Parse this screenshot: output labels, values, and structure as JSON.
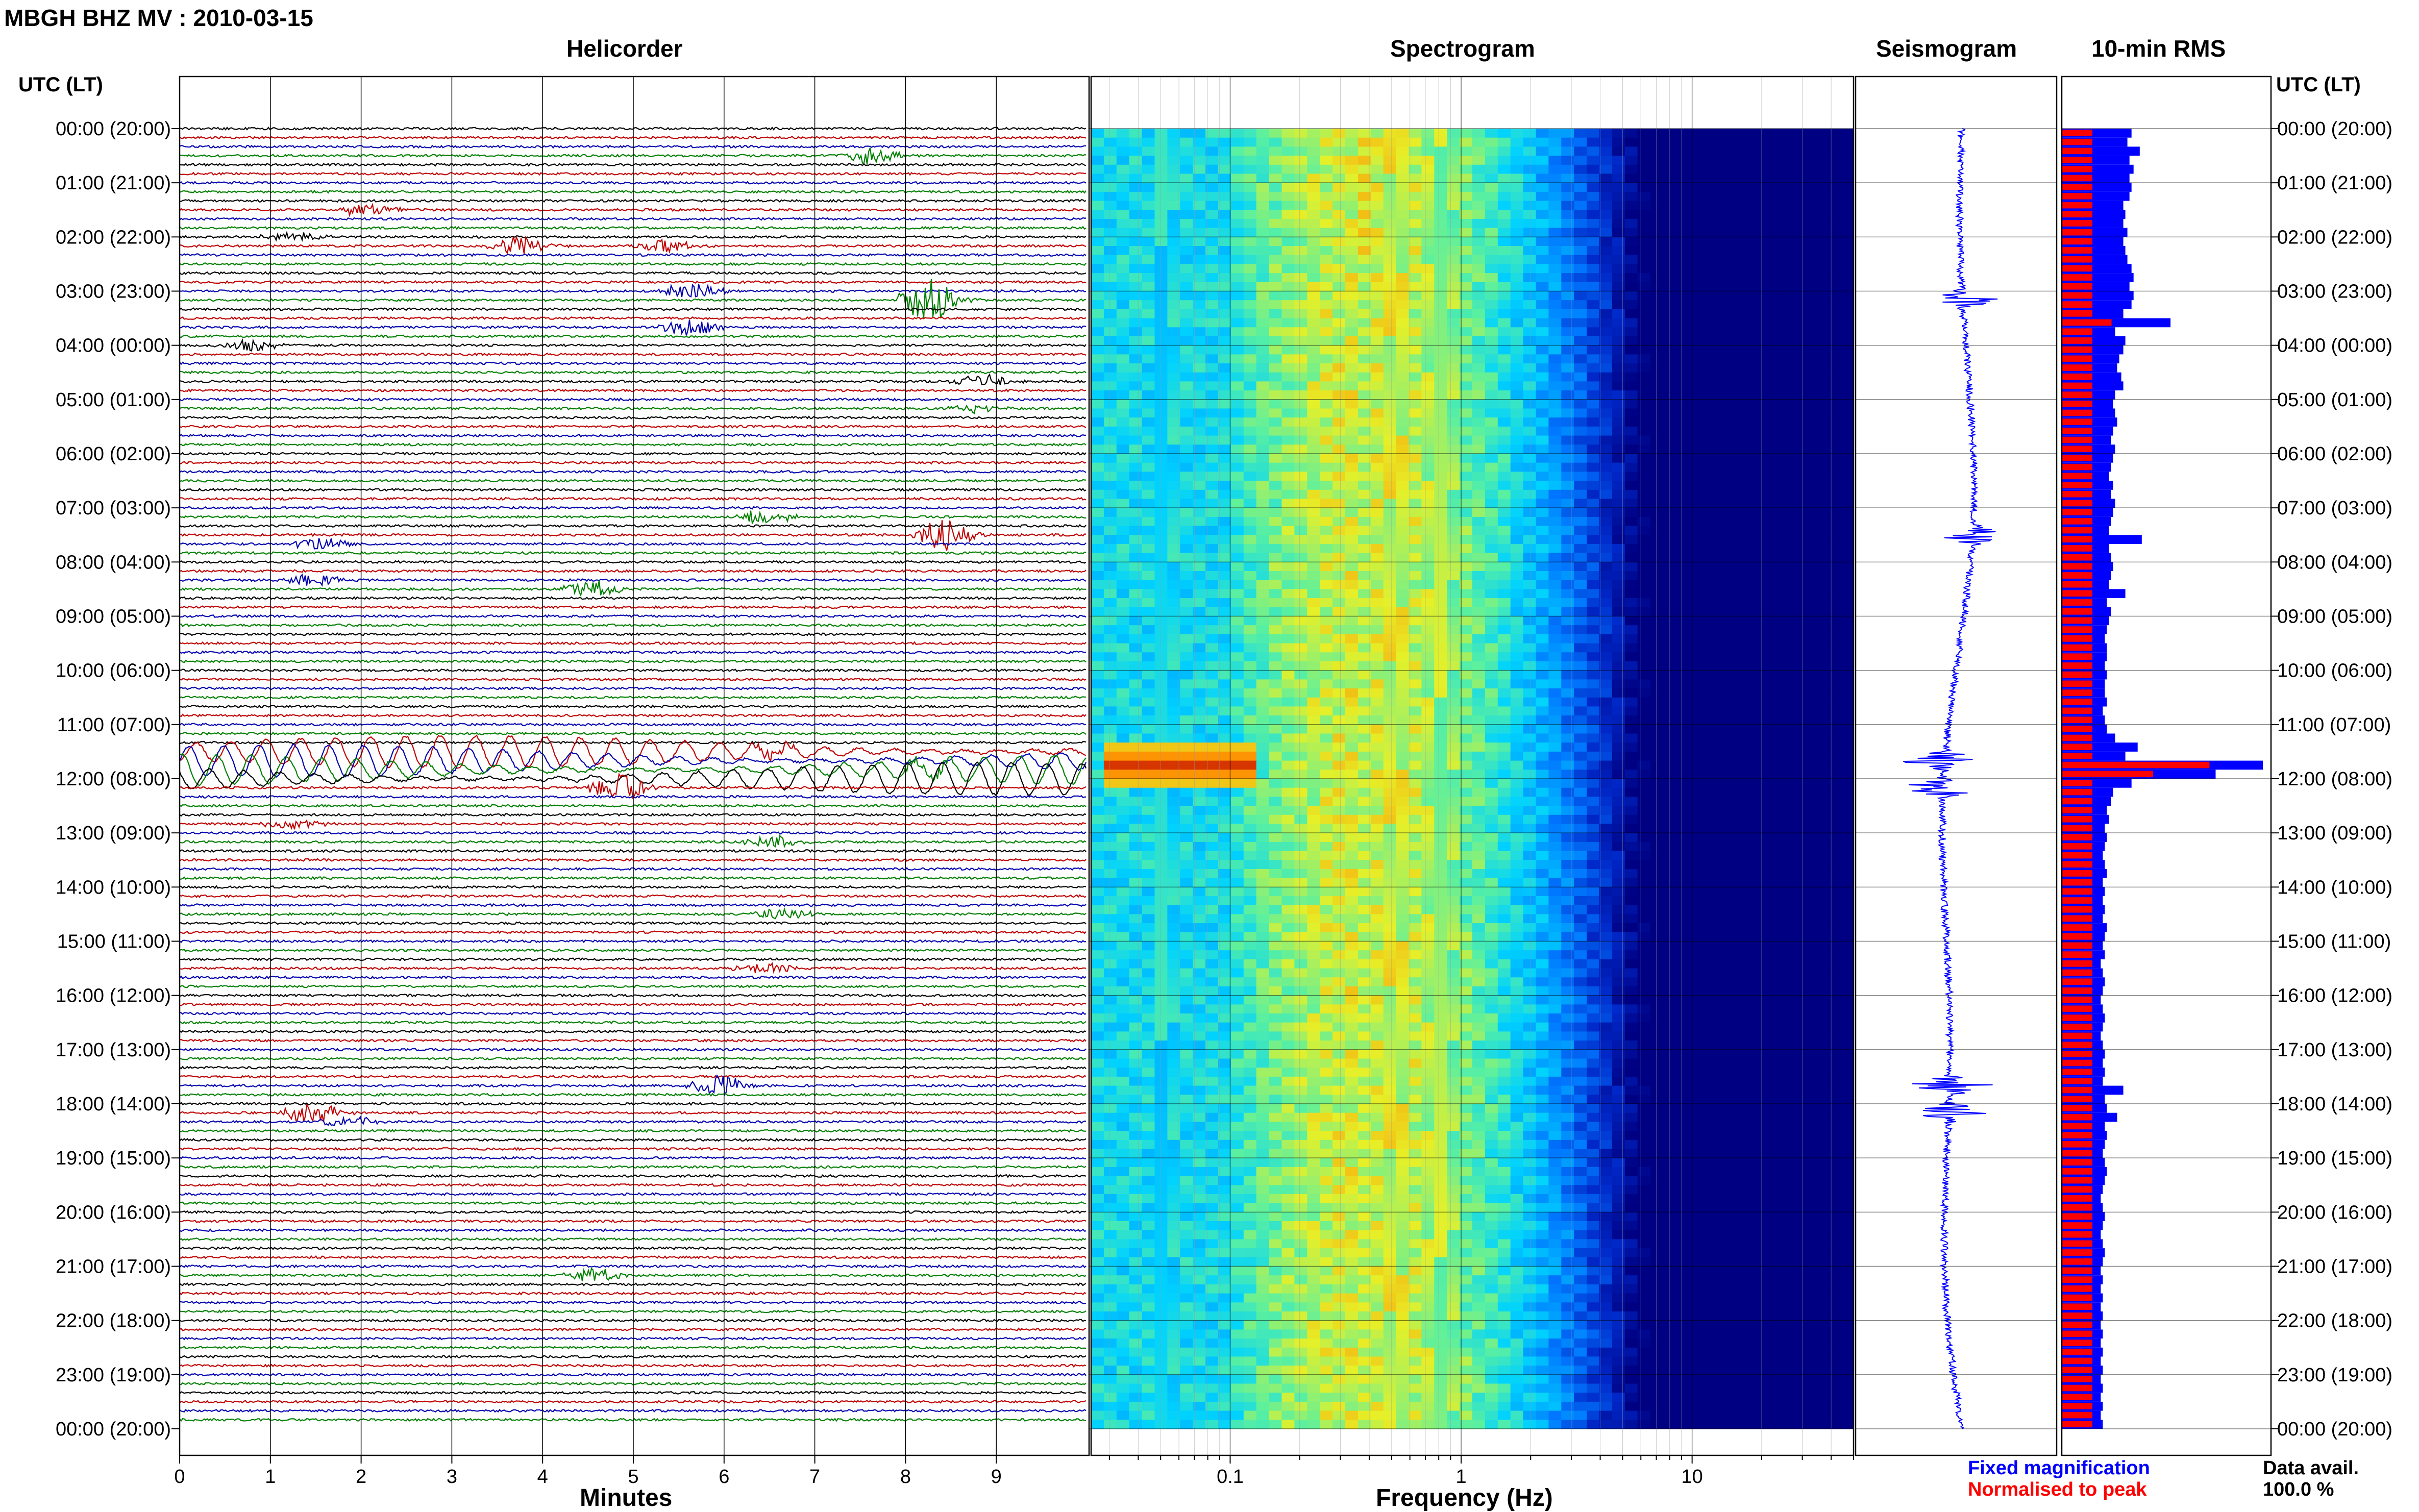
{
  "header": {
    "station_title": "MBGH BHZ MV : 2010-03-15",
    "panel_titles": {
      "helicorder": "Helicorder",
      "spectrogram": "Spectrogram",
      "seismogram": "Seismogram",
      "rms": "10-min RMS"
    },
    "time_axis_label": "UTC (LT)"
  },
  "colors": {
    "trace_cycle": [
      "#000000",
      "#c00000",
      "#0000b0",
      "#008000"
    ],
    "rms_fixed": "#0000ff",
    "rms_normalised": "#ff0000",
    "grid": "#000000"
  },
  "chart_data": [
    {
      "type": "line",
      "panel": "Helicorder",
      "xlabel": "Minutes",
      "x_ticks": [
        "0",
        "1",
        "2",
        "3",
        "4",
        "5",
        "6",
        "7",
        "8",
        "9"
      ],
      "xlim": [
        0,
        10
      ],
      "rows_per_hour": 6,
      "y_tick_labels": [
        "00:00 (20:00)",
        "01:00 (21:00)",
        "02:00 (22:00)",
        "03:00 (23:00)",
        "04:00 (00:00)",
        "05:00 (01:00)",
        "06:00 (02:00)",
        "07:00 (03:00)",
        "08:00 (04:00)",
        "09:00 (05:00)",
        "10:00 (06:00)",
        "11:00 (07:00)",
        "12:00 (08:00)",
        "13:00 (09:00)",
        "14:00 (10:00)",
        "15:00 (11:00)",
        "16:00 (12:00)",
        "17:00 (13:00)",
        "18:00 (14:00)",
        "19:00 (15:00)",
        "20:00 (16:00)",
        "21:00 (17:00)",
        "22:00 (18:00)",
        "23:00 (19:00)",
        "00:00 (20:00)"
      ],
      "events": [
        {
          "row": 3,
          "minute": 7.4,
          "amplitude": 1.5
        },
        {
          "row": 9,
          "minute": 1.8,
          "amplitude": 1.2
        },
        {
          "row": 12,
          "minute": 1.0,
          "amplitude": 1.0
        },
        {
          "row": 13,
          "minute": 3.5,
          "amplitude": 1.8
        },
        {
          "row": 13,
          "minute": 5.1,
          "amplitude": 1.1
        },
        {
          "row": 18,
          "minute": 5.4,
          "amplitude": 1.7
        },
        {
          "row": 19,
          "minute": 8.0,
          "amplitude": 4.0
        },
        {
          "row": 22,
          "minute": 5.4,
          "amplitude": 1.6
        },
        {
          "row": 24,
          "minute": 0.5,
          "amplitude": 1.1
        },
        {
          "row": 28,
          "minute": 8.6,
          "amplitude": 1.2
        },
        {
          "row": 31,
          "minute": 8.5,
          "amplitude": 0.8
        },
        {
          "row": 43,
          "minute": 6.2,
          "amplitude": 1.3
        },
        {
          "row": 45,
          "minute": 8.2,
          "amplitude": 3.0
        },
        {
          "row": 46,
          "minute": 1.3,
          "amplitude": 1.1
        },
        {
          "row": 50,
          "minute": 1.2,
          "amplitude": 1.0
        },
        {
          "row": 51,
          "minute": 4.3,
          "amplitude": 1.6
        },
        {
          "row": 69,
          "minute": 6.3,
          "amplitude": 1.3
        },
        {
          "row": 71,
          "minute": 8.0,
          "amplitude": 1.2
        },
        {
          "row": 73,
          "minute": 4.6,
          "amplitude": 2.6
        },
        {
          "row": 77,
          "minute": 1.0,
          "amplitude": 1.0
        },
        {
          "row": 79,
          "minute": 6.3,
          "amplitude": 1.2
        },
        {
          "row": 87,
          "minute": 6.4,
          "amplitude": 1.1
        },
        {
          "row": 93,
          "minute": 6.2,
          "amplitude": 1.0
        },
        {
          "row": 106,
          "minute": 5.7,
          "amplitude": 2.0
        },
        {
          "row": 109,
          "minute": 1.2,
          "amplitude": 2.0
        },
        {
          "row": 110,
          "minute": 1.6,
          "amplitude": 1.0
        },
        {
          "row": 127,
          "minute": 4.3,
          "amplitude": 1.2
        }
      ],
      "teleseism": {
        "first_row": 69,
        "last_row": 72,
        "amplitude": 5.5
      }
    },
    {
      "type": "heatmap",
      "panel": "Spectrogram",
      "xlabel": "Frequency (Hz)",
      "x_scale": "log",
      "xlim": [
        0.025,
        50
      ],
      "x_ticks": [
        {
          "value": 0.1,
          "label": "0.1"
        },
        {
          "value": 1,
          "label": "1"
        },
        {
          "value": 10,
          "label": "10"
        }
      ],
      "peak_frequency_hz": 0.4,
      "hot_spot": {
        "row": 70,
        "frequency_hz": 0.06
      }
    },
    {
      "type": "line",
      "panel": "Seismogram",
      "events_rows": [
        19,
        45,
        70,
        73,
        106,
        109
      ]
    },
    {
      "type": "bar",
      "panel": "10-min RMS",
      "orientation": "horizontal",
      "legend": [
        "Fixed magnification",
        "Normalised to peak"
      ],
      "legend_placement": "bottom",
      "data_availability_label": "Data avail.",
      "data_availability_value": "100.0 %",
      "fixed_values": [
        0.34,
        0.32,
        0.38,
        0.33,
        0.35,
        0.33,
        0.34,
        0.33,
        0.3,
        0.31,
        0.3,
        0.32,
        0.3,
        0.31,
        0.32,
        0.34,
        0.35,
        0.33,
        0.35,
        0.34,
        0.3,
        0.53,
        0.26,
        0.31,
        0.3,
        0.28,
        0.27,
        0.29,
        0.3,
        0.26,
        0.25,
        0.26,
        0.27,
        0.25,
        0.24,
        0.26,
        0.25,
        0.24,
        0.23,
        0.25,
        0.24,
        0.26,
        0.25,
        0.24,
        0.23,
        0.39,
        0.23,
        0.24,
        0.25,
        0.24,
        0.23,
        0.31,
        0.22,
        0.24,
        0.23,
        0.22,
        0.21,
        0.22,
        0.22,
        0.21,
        0.22,
        0.21,
        0.21,
        0.22,
        0.2,
        0.21,
        0.22,
        0.26,
        0.37,
        0.31,
        0.98,
        0.75,
        0.34,
        0.25,
        0.24,
        0.22,
        0.23,
        0.21,
        0.22,
        0.21,
        0.2,
        0.21,
        0.22,
        0.2,
        0.21,
        0.2,
        0.21,
        0.2,
        0.22,
        0.21,
        0.2,
        0.21,
        0.19,
        0.2,
        0.21,
        0.2,
        0.19,
        0.2,
        0.21,
        0.2,
        0.19,
        0.2,
        0.21,
        0.2,
        0.21,
        0.2,
        0.3,
        0.21,
        0.22,
        0.27,
        0.21,
        0.22,
        0.21,
        0.2,
        0.21,
        0.22,
        0.21,
        0.2,
        0.19,
        0.2,
        0.21,
        0.2,
        0.19,
        0.2,
        0.21,
        0.2,
        0.19,
        0.2,
        0.19,
        0.2,
        0.19,
        0.2,
        0.19,
        0.2,
        0.19,
        0.2,
        0.19,
        0.2,
        0.19,
        0.2,
        0.19,
        0.2,
        0.19,
        0.2
      ]
    }
  ]
}
